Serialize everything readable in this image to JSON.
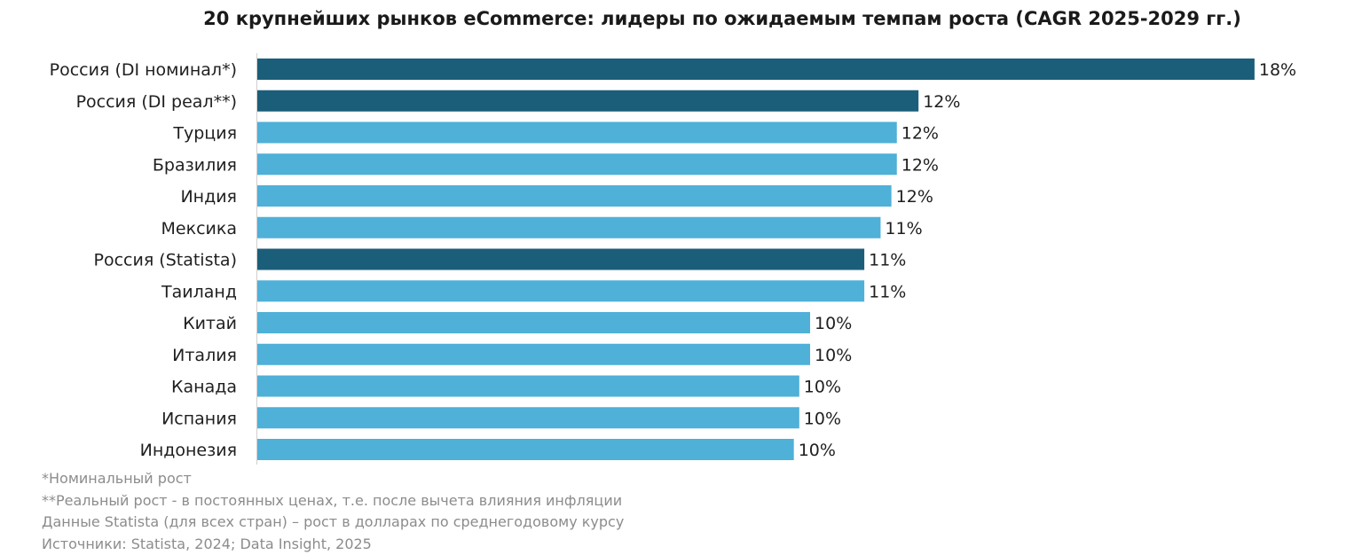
{
  "chart_data": {
    "type": "bar",
    "orientation": "horizontal",
    "title": "20 крупнейших рынков eCommerce: лидеры по ожидаемым темпам роста (CAGR 2025-2029 гг.)",
    "xlabel": "",
    "ylabel": "",
    "xlim": [
      0,
      18.5
    ],
    "grid": false,
    "legend": "none",
    "categories": [
      "Россия (DI номинал*)",
      "Россия (DI реал**)",
      "Турция",
      "Бразилия",
      "Индия",
      "Мексика",
      "Россия (Statista)",
      "Таиланд",
      "Китай",
      "Италия",
      "Канада",
      "Испания",
      "Индонезия"
    ],
    "values": [
      18.4,
      12.2,
      11.8,
      11.8,
      11.7,
      11.5,
      11.2,
      11.2,
      10.2,
      10.2,
      10.0,
      10.0,
      9.9
    ],
    "value_labels": [
      "18%",
      "12%",
      "12%",
      "12%",
      "12%",
      "11%",
      "11%",
      "11%",
      "10%",
      "10%",
      "10%",
      "10%",
      "10%"
    ],
    "highlight": [
      true,
      true,
      false,
      false,
      false,
      false,
      true,
      false,
      false,
      false,
      false,
      false,
      false
    ],
    "colors": {
      "highlight": "#1b5e7a",
      "default": "#4fb0d8",
      "axis": "#d0d0d0"
    }
  },
  "notes": [
    "*Номинальный рост",
    "**Реальный рост - в постоянных ценах, т.е. после вычета влияния инфляции",
    "Данные Statista (для всех стран)  – рост в долларах по среднегодовому курсу",
    "Источники: Statista, 2024; Data Insight, 2025"
  ]
}
